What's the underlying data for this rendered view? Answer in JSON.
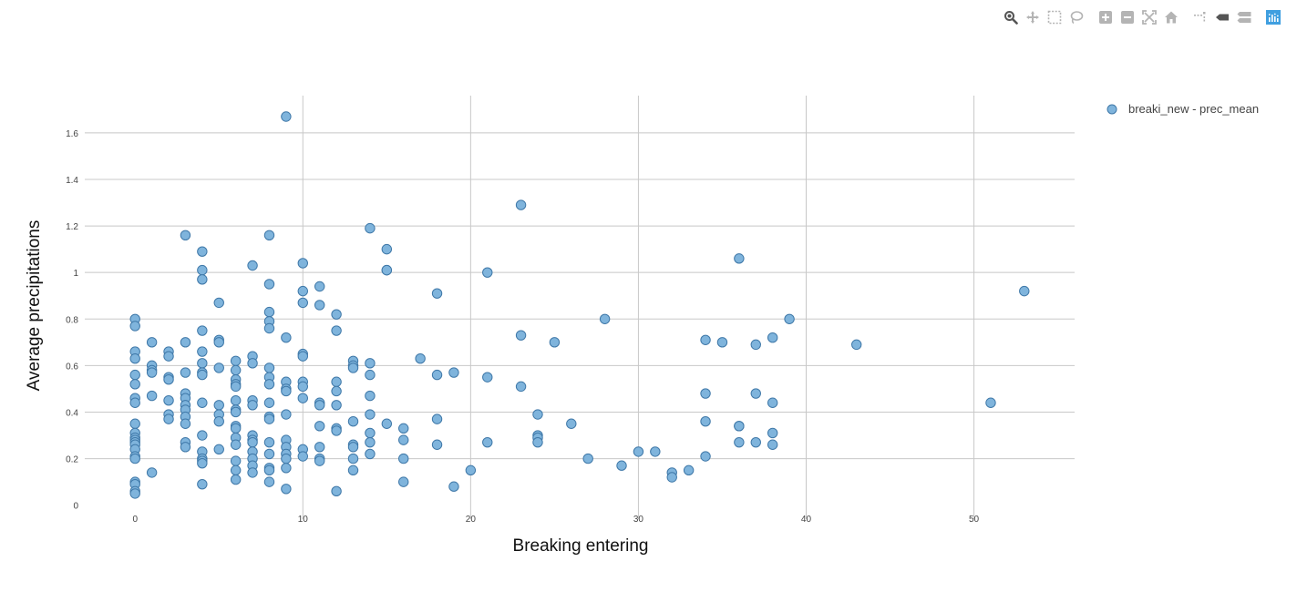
{
  "toolbar": {
    "buttons": [
      {
        "name": "zoom-icon"
      },
      {
        "name": "pan-icon"
      },
      {
        "name": "box-select-icon"
      },
      {
        "name": "lasso-select-icon"
      },
      {
        "name": "zoom-in-icon"
      },
      {
        "name": "zoom-out-icon"
      },
      {
        "name": "autoscale-icon"
      },
      {
        "name": "reset-axes-icon"
      },
      {
        "name": "toggle-spike-lines-icon"
      },
      {
        "name": "hover-closest-icon"
      },
      {
        "name": "hover-compare-icon"
      },
      {
        "name": "plotly-logo-icon"
      }
    ],
    "colors": {
      "icon": "#b4b4b4",
      "active": "#555555",
      "logo": "#3f9fe0"
    }
  },
  "chart_data": {
    "type": "scatter",
    "title": "",
    "xlabel": "Breaking entering",
    "ylabel": "Average precipitations",
    "xlim": [
      -3,
      56
    ],
    "ylim": [
      -0.06,
      1.76
    ],
    "x_ticks": [
      0,
      10,
      20,
      30,
      40,
      50
    ],
    "y_ticks": [
      0,
      0.2,
      0.4,
      0.6,
      0.8,
      1,
      1.2,
      1.4,
      1.6
    ],
    "x_tick_labels": [
      "0",
      "10",
      "20",
      "30",
      "40",
      "50"
    ],
    "y_tick_labels": [
      "0",
      "0.2",
      "0.4",
      "0.6",
      "0.8",
      "1",
      "1.2",
      "1.4",
      "1.6"
    ],
    "grid": true,
    "legend_position": "top-right",
    "marker_color": "#7fb4dc",
    "marker_edge_color": "#3f78a8",
    "series": [
      {
        "name": "breaki_new - prec_mean",
        "points": [
          [
            0,
            0.8
          ],
          [
            0,
            0.77
          ],
          [
            0,
            0.66
          ],
          [
            0,
            0.63
          ],
          [
            0,
            0.56
          ],
          [
            0,
            0.52
          ],
          [
            0,
            0.46
          ],
          [
            0,
            0.44
          ],
          [
            0,
            0.35
          ],
          [
            0,
            0.31
          ],
          [
            0,
            0.29
          ],
          [
            0,
            0.28
          ],
          [
            0,
            0.27
          ],
          [
            0,
            0.26
          ],
          [
            0,
            0.24
          ],
          [
            0,
            0.21
          ],
          [
            0,
            0.2
          ],
          [
            0,
            0.1
          ],
          [
            0,
            0.09
          ],
          [
            0,
            0.06
          ],
          [
            0,
            0.05
          ],
          [
            1,
            0.7
          ],
          [
            1,
            0.6
          ],
          [
            1,
            0.58
          ],
          [
            1,
            0.57
          ],
          [
            1,
            0.47
          ],
          [
            1,
            0.14
          ],
          [
            2,
            0.66
          ],
          [
            2,
            0.64
          ],
          [
            2,
            0.55
          ],
          [
            2,
            0.54
          ],
          [
            2,
            0.45
          ],
          [
            2,
            0.39
          ],
          [
            2,
            0.37
          ],
          [
            3,
            1.16
          ],
          [
            3,
            0.7
          ],
          [
            3,
            0.57
          ],
          [
            3,
            0.48
          ],
          [
            3,
            0.46
          ],
          [
            3,
            0.43
          ],
          [
            3,
            0.41
          ],
          [
            3,
            0.38
          ],
          [
            3,
            0.35
          ],
          [
            3,
            0.27
          ],
          [
            3,
            0.25
          ],
          [
            4,
            1.09
          ],
          [
            4,
            1.01
          ],
          [
            4,
            0.97
          ],
          [
            4,
            0.75
          ],
          [
            4,
            0.66
          ],
          [
            4,
            0.61
          ],
          [
            4,
            0.57
          ],
          [
            4,
            0.56
          ],
          [
            4,
            0.44
          ],
          [
            4,
            0.3
          ],
          [
            4,
            0.23
          ],
          [
            4,
            0.2
          ],
          [
            4,
            0.19
          ],
          [
            4,
            0.18
          ],
          [
            4,
            0.09
          ],
          [
            5,
            0.87
          ],
          [
            5,
            0.71
          ],
          [
            5,
            0.7
          ],
          [
            5,
            0.59
          ],
          [
            5,
            0.43
          ],
          [
            5,
            0.39
          ],
          [
            5,
            0.36
          ],
          [
            5,
            0.24
          ],
          [
            6,
            0.62
          ],
          [
            6,
            0.58
          ],
          [
            6,
            0.54
          ],
          [
            6,
            0.52
          ],
          [
            6,
            0.51
          ],
          [
            6,
            0.45
          ],
          [
            6,
            0.41
          ],
          [
            6,
            0.4
          ],
          [
            6,
            0.34
          ],
          [
            6,
            0.33
          ],
          [
            6,
            0.29
          ],
          [
            6,
            0.26
          ],
          [
            6,
            0.19
          ],
          [
            6,
            0.15
          ],
          [
            6,
            0.11
          ],
          [
            7,
            1.03
          ],
          [
            7,
            0.64
          ],
          [
            7,
            0.61
          ],
          [
            7,
            0.45
          ],
          [
            7,
            0.43
          ],
          [
            7,
            0.3
          ],
          [
            7,
            0.28
          ],
          [
            7,
            0.27
          ],
          [
            7,
            0.23
          ],
          [
            7,
            0.2
          ],
          [
            7,
            0.17
          ],
          [
            7,
            0.14
          ],
          [
            8,
            1.16
          ],
          [
            8,
            0.95
          ],
          [
            8,
            0.83
          ],
          [
            8,
            0.79
          ],
          [
            8,
            0.76
          ],
          [
            8,
            0.59
          ],
          [
            8,
            0.55
          ],
          [
            8,
            0.52
          ],
          [
            8,
            0.44
          ],
          [
            8,
            0.38
          ],
          [
            8,
            0.37
          ],
          [
            8,
            0.27
          ],
          [
            8,
            0.22
          ],
          [
            8,
            0.16
          ],
          [
            8,
            0.15
          ],
          [
            8,
            0.1
          ],
          [
            9,
            1.67
          ],
          [
            9,
            0.72
          ],
          [
            9,
            0.53
          ],
          [
            9,
            0.5
          ],
          [
            9,
            0.49
          ],
          [
            9,
            0.39
          ],
          [
            9,
            0.28
          ],
          [
            9,
            0.25
          ],
          [
            9,
            0.22
          ],
          [
            9,
            0.2
          ],
          [
            9,
            0.16
          ],
          [
            9,
            0.07
          ],
          [
            10,
            1.04
          ],
          [
            10,
            0.92
          ],
          [
            10,
            0.87
          ],
          [
            10,
            0.65
          ],
          [
            10,
            0.64
          ],
          [
            10,
            0.53
          ],
          [
            10,
            0.51
          ],
          [
            10,
            0.46
          ],
          [
            10,
            0.24
          ],
          [
            10,
            0.21
          ],
          [
            11,
            0.94
          ],
          [
            11,
            0.86
          ],
          [
            11,
            0.44
          ],
          [
            11,
            0.43
          ],
          [
            11,
            0.34
          ],
          [
            11,
            0.25
          ],
          [
            11,
            0.2
          ],
          [
            11,
            0.19
          ],
          [
            12,
            0.82
          ],
          [
            12,
            0.75
          ],
          [
            12,
            0.53
          ],
          [
            12,
            0.49
          ],
          [
            12,
            0.43
          ],
          [
            12,
            0.33
          ],
          [
            12,
            0.32
          ],
          [
            12,
            0.06
          ],
          [
            13,
            0.62
          ],
          [
            13,
            0.6
          ],
          [
            13,
            0.59
          ],
          [
            13,
            0.36
          ],
          [
            13,
            0.26
          ],
          [
            13,
            0.25
          ],
          [
            13,
            0.2
          ],
          [
            13,
            0.15
          ],
          [
            14,
            1.19
          ],
          [
            14,
            0.61
          ],
          [
            14,
            0.56
          ],
          [
            14,
            0.47
          ],
          [
            14,
            0.39
          ],
          [
            14,
            0.31
          ],
          [
            14,
            0.27
          ],
          [
            14,
            0.22
          ],
          [
            15,
            1.1
          ],
          [
            15,
            1.01
          ],
          [
            15,
            1.01
          ],
          [
            15,
            0.35
          ],
          [
            16,
            0.33
          ],
          [
            16,
            0.28
          ],
          [
            16,
            0.2
          ],
          [
            16,
            0.1
          ],
          [
            17,
            0.63
          ],
          [
            18,
            0.91
          ],
          [
            18,
            0.56
          ],
          [
            18,
            0.37
          ],
          [
            18,
            0.26
          ],
          [
            19,
            0.57
          ],
          [
            19,
            0.08
          ],
          [
            20,
            0.15
          ],
          [
            21,
            1.0
          ],
          [
            21,
            0.55
          ],
          [
            21,
            0.27
          ],
          [
            23,
            1.29
          ],
          [
            23,
            0.73
          ],
          [
            23,
            0.51
          ],
          [
            24,
            0.39
          ],
          [
            24,
            0.3
          ],
          [
            24,
            0.29
          ],
          [
            24,
            0.27
          ],
          [
            25,
            0.7
          ],
          [
            26,
            0.35
          ],
          [
            27,
            0.2
          ],
          [
            28,
            0.8
          ],
          [
            29,
            0.17
          ],
          [
            30,
            0.23
          ],
          [
            31,
            0.23
          ],
          [
            32,
            0.14
          ],
          [
            32,
            0.12
          ],
          [
            33,
            0.15
          ],
          [
            34,
            0.71
          ],
          [
            34,
            0.48
          ],
          [
            34,
            0.36
          ],
          [
            34,
            0.21
          ],
          [
            35,
            0.7
          ],
          [
            36,
            1.06
          ],
          [
            36,
            0.34
          ],
          [
            36,
            0.34
          ],
          [
            36,
            0.27
          ],
          [
            37,
            0.69
          ],
          [
            37,
            0.48
          ],
          [
            37,
            0.27
          ],
          [
            38,
            0.72
          ],
          [
            38,
            0.44
          ],
          [
            38,
            0.31
          ],
          [
            38,
            0.26
          ],
          [
            39,
            0.8
          ],
          [
            43,
            0.69
          ],
          [
            51,
            0.44
          ],
          [
            53,
            0.92
          ]
        ]
      }
    ]
  }
}
